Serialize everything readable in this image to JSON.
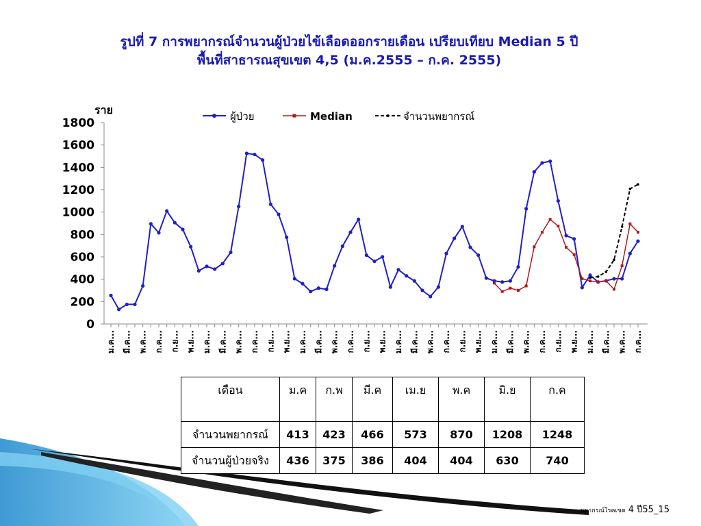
{
  "title": {
    "line1": "รูปที่ 7 การพยากรณ์จำนวนผู้ป่วยไข้เลือดออกรายเดือน เปรียบเทียบ Median 5 ปี",
    "line2": "พื้นที่สาธารณสุขเขต 4,5 (ม.ค.2555 – ก.ค. 2555)"
  },
  "colors": {
    "patients": "#1f1fc8",
    "median": "#b01a1a",
    "forecast": "#000000",
    "title": "#1a1ab0"
  },
  "chart_data": {
    "type": "line",
    "ylabel": "ราย",
    "ylim": [
      0,
      1800
    ],
    "yticks": [
      0,
      200,
      400,
      600,
      800,
      1000,
      1200,
      1400,
      1600,
      1800
    ],
    "grid": false,
    "legend_placement": "top",
    "xtick_labels": [
      "ม.ค...",
      "มี.ค...",
      "พ.ค...",
      "ก.ค...",
      "ก.ย...",
      "พ.ย...",
      "ม.ค...",
      "มี.ค...",
      "พ.ค...",
      "ก.ค...",
      "ก.ย...",
      "พ.ย...",
      "ม.ค...",
      "มี.ค...",
      "พ.ค...",
      "ก.ค...",
      "ก.ย...",
      "พ.ย...",
      "ม.ค...",
      "มี.ค...",
      "พ.ค...",
      "ก.ค...",
      "ก.ย...",
      "พ.ย...",
      "ม.ค...",
      "มี.ค...",
      "พ.ค...",
      "ก.ค...",
      "ก.ย...",
      "พ.ย...",
      "ม.ค...",
      "มี.ค...",
      "พ.ค...",
      "ก.ค..."
    ],
    "series": [
      {
        "name": "ผู้ป่วย",
        "start_index": 0,
        "values": [
          255,
          130,
          175,
          175,
          340,
          895,
          815,
          1010,
          905,
          845,
          690,
          475,
          515,
          490,
          540,
          640,
          1050,
          1525,
          1515,
          1465,
          1070,
          980,
          775,
          405,
          360,
          290,
          320,
          310,
          520,
          695,
          820,
          935,
          615,
          560,
          600,
          330,
          485,
          430,
          385,
          300,
          245,
          330,
          630,
          765,
          870,
          685,
          615,
          410,
          385,
          375,
          385,
          510,
          1030,
          1360,
          1440,
          1455,
          1100,
          790,
          760,
          325,
          436,
          375,
          386,
          404,
          404,
          630,
          740
        ]
      },
      {
        "name": "Median",
        "start_index": 48,
        "values": [
          365,
          290,
          320,
          300,
          340,
          690,
          820,
          935,
          875,
          685,
          620,
          405,
          385,
          375,
          385,
          310,
          520,
          895,
          820
        ]
      },
      {
        "name": "จำนวนพยากรณ์",
        "start_index": 60,
        "values": [
          413,
          423,
          466,
          573,
          870,
          1208,
          1248
        ]
      }
    ]
  },
  "table": {
    "headers": [
      "เดือน",
      "ม.ค",
      "ก.พ",
      "มี.ค",
      "เม.ย",
      "พ.ค",
      "มิ.ย",
      "ก.ค"
    ],
    "rows": [
      {
        "label": "จำนวนพยากรณ์",
        "values": [
          "413",
          "423",
          "466",
          "573",
          "870",
          "1208",
          "1248"
        ]
      },
      {
        "label": "จำนวนผู้ป่วยจริง",
        "values": [
          "436",
          "375",
          "386",
          "404",
          "404",
          "630",
          "740"
        ]
      }
    ]
  },
  "footer": {
    "prefix": "พยากรณ์โรคเขต",
    "suffix": "4 ปี55_15"
  }
}
